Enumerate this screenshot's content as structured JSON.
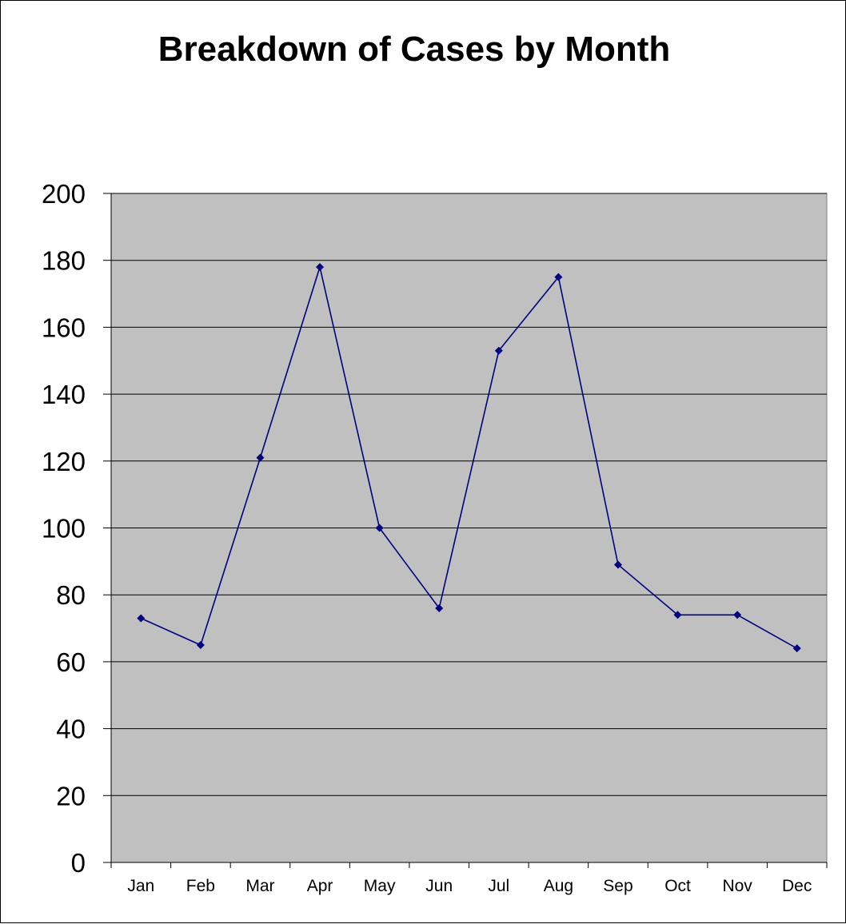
{
  "chart_data": {
    "type": "line",
    "title": "Breakdown of Cases by Month",
    "xlabel": "",
    "ylabel": "",
    "categories": [
      "Jan",
      "Feb",
      "Mar",
      "Apr",
      "May",
      "Jun",
      "Jul",
      "Aug",
      "Sep",
      "Oct",
      "Nov",
      "Dec"
    ],
    "series": [
      {
        "values": [
          73,
          65,
          121,
          178,
          100,
          76,
          153,
          175,
          89,
          74,
          74,
          64
        ]
      }
    ],
    "ylim": [
      0,
      200
    ],
    "yticks": [
      0,
      20,
      40,
      60,
      80,
      100,
      120,
      140,
      160,
      180,
      200
    ],
    "grid": "horizontal",
    "legend": "none",
    "marker": "diamond",
    "colors": {
      "line": "#000080",
      "marker": "#000080",
      "plot_background": "#c0c0c0",
      "gridline": "#000000"
    }
  }
}
